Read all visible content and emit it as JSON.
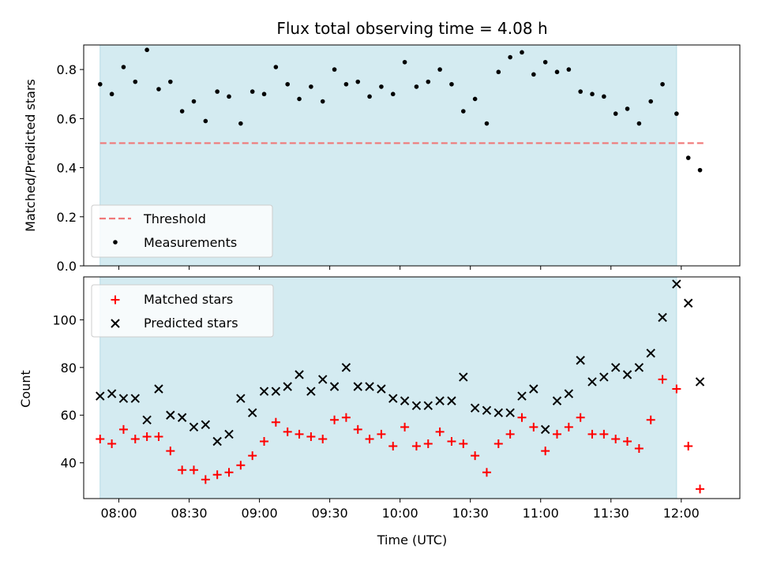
{
  "figure": {
    "title": "Flux total observing time = 4.08 h",
    "colors": {
      "shade": "#d4ebf1",
      "shade_edge": "#b7dbe5",
      "threshold": "#f07878",
      "measure": "#000000",
      "matched": "#ff0000",
      "predicted": "#000000"
    }
  },
  "chart_data": [
    {
      "type": "scatter",
      "panel": "top",
      "xlabel": "",
      "ylabel": "Matched/Predicted stars",
      "ylim": [
        0.0,
        0.9
      ],
      "yticks": [
        "0.0",
        "0.2",
        "0.4",
        "0.6",
        "0.8"
      ],
      "ytick_values": [
        0,
        0.2,
        0.4,
        0.6,
        0.8
      ],
      "xlim": [
        "07:45",
        "12:25"
      ],
      "shaded_span": [
        "07:52",
        "11:58"
      ],
      "threshold": {
        "name": "Threshold",
        "value": 0.5,
        "x": [
          "07:52",
          "12:10"
        ]
      },
      "series": [
        {
          "name": "Measurements",
          "x": [
            "07:52",
            "07:57",
            "08:02",
            "08:07",
            "08:12",
            "08:17",
            "08:22",
            "08:27",
            "08:32",
            "08:37",
            "08:42",
            "08:47",
            "08:52",
            "08:57",
            "09:02",
            "09:07",
            "09:12",
            "09:17",
            "09:22",
            "09:27",
            "09:32",
            "09:37",
            "09:42",
            "09:47",
            "09:52",
            "09:57",
            "10:02",
            "10:07",
            "10:12",
            "10:17",
            "10:22",
            "10:27",
            "10:32",
            "10:37",
            "10:42",
            "10:47",
            "10:52",
            "10:57",
            "11:02",
            "11:07",
            "11:12",
            "11:17",
            "11:22",
            "11:27",
            "11:32",
            "11:37",
            "11:42",
            "11:47",
            "11:52",
            "11:58",
            "12:03",
            "12:08"
          ],
          "y": [
            0.74,
            0.7,
            0.81,
            0.75,
            0.88,
            0.72,
            0.75,
            0.63,
            0.67,
            0.59,
            0.71,
            0.69,
            0.58,
            0.71,
            0.7,
            0.81,
            0.74,
            0.68,
            0.73,
            0.67,
            0.8,
            0.74,
            0.75,
            0.69,
            0.73,
            0.7,
            0.83,
            0.73,
            0.75,
            0.8,
            0.74,
            0.63,
            0.68,
            0.58,
            0.79,
            0.85,
            0.87,
            0.78,
            0.83,
            0.79,
            0.8,
            0.71,
            0.7,
            0.69,
            0.62,
            0.64,
            0.58,
            0.67,
            0.74,
            0.62,
            0.44,
            0.39
          ]
        }
      ],
      "legend": {
        "placement": "lower-left",
        "entries": [
          "Threshold",
          "Measurements"
        ]
      }
    },
    {
      "type": "scatter",
      "panel": "bottom",
      "xlabel": "Time (UTC)",
      "ylabel": "Count",
      "ylim": [
        25,
        118
      ],
      "yticks": [
        "40",
        "60",
        "80",
        "100"
      ],
      "ytick_values": [
        40,
        60,
        80,
        100
      ],
      "xlim": [
        "07:45",
        "12:25"
      ],
      "xticks": [
        "08:00",
        "08:30",
        "09:00",
        "09:30",
        "10:00",
        "10:30",
        "11:00",
        "11:30",
        "12:00"
      ],
      "shaded_span": [
        "07:52",
        "11:58"
      ],
      "x": [
        "07:52",
        "07:57",
        "08:02",
        "08:07",
        "08:12",
        "08:17",
        "08:22",
        "08:27",
        "08:32",
        "08:37",
        "08:42",
        "08:47",
        "08:52",
        "08:57",
        "09:02",
        "09:07",
        "09:12",
        "09:17",
        "09:22",
        "09:27",
        "09:32",
        "09:37",
        "09:42",
        "09:47",
        "09:52",
        "09:57",
        "10:02",
        "10:07",
        "10:12",
        "10:17",
        "10:22",
        "10:27",
        "10:32",
        "10:37",
        "10:42",
        "10:47",
        "10:52",
        "10:57",
        "11:02",
        "11:07",
        "11:12",
        "11:17",
        "11:22",
        "11:27",
        "11:32",
        "11:37",
        "11:42",
        "11:47",
        "11:52",
        "11:58",
        "12:03",
        "12:08"
      ],
      "series": [
        {
          "name": "Matched stars",
          "marker": "plus",
          "values": [
            50,
            48,
            54,
            50,
            51,
            51,
            45,
            37,
            37,
            33,
            35,
            36,
            39,
            43,
            49,
            57,
            53,
            52,
            51,
            50,
            58,
            59,
            54,
            50,
            52,
            47,
            55,
            47,
            48,
            53,
            49,
            48,
            43,
            36,
            48,
            52,
            59,
            55,
            45,
            52,
            55,
            59,
            52,
            52,
            50,
            49,
            46,
            58,
            75,
            71,
            47,
            29
          ]
        },
        {
          "name": "Predicted stars",
          "marker": "x",
          "values": [
            68,
            69,
            67,
            67,
            58,
            71,
            60,
            59,
            55,
            56,
            49,
            52,
            67,
            61,
            70,
            70,
            72,
            77,
            70,
            75,
            72,
            80,
            72,
            72,
            71,
            67,
            66,
            64,
            64,
            66,
            66,
            76,
            63,
            62,
            61,
            61,
            68,
            71,
            54,
            66,
            69,
            83,
            74,
            76,
            80,
            77,
            80,
            86,
            101,
            115,
            107,
            74
          ]
        }
      ],
      "legend": {
        "placement": "upper-left",
        "entries": [
          "Matched stars",
          "Predicted stars"
        ]
      }
    }
  ]
}
